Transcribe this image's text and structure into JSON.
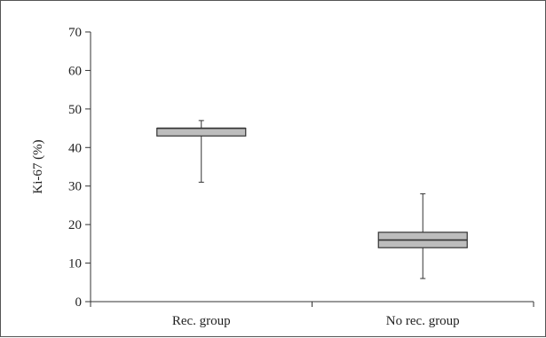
{
  "chart_data": {
    "type": "box",
    "title": "",
    "xlabel": "",
    "ylabel": "Ki-67 (%)",
    "ylim": [
      0,
      70
    ],
    "yticks": [
      0,
      10,
      20,
      30,
      40,
      50,
      60,
      70
    ],
    "grid": false,
    "legend": "none",
    "categories": [
      "Rec. group",
      "No rec. group"
    ],
    "boxes": [
      {
        "category": "Rec. group",
        "min": 31,
        "q1": 43,
        "median": 45,
        "q3": 45,
        "max": 47
      },
      {
        "category": "No rec. group",
        "min": 6,
        "q1": 14,
        "median": 16,
        "q3": 18,
        "max": 28
      }
    ],
    "colors": {
      "box_fill": "#bdbdbd",
      "stroke": "#333333",
      "frame": "#555555"
    }
  }
}
